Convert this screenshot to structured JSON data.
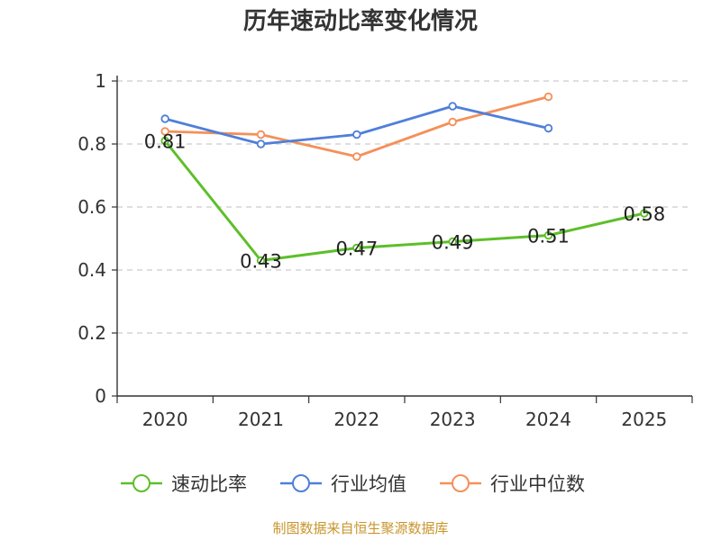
{
  "chart_data": {
    "type": "line",
    "title": "历年速动比率变化情况",
    "categories": [
      "2020",
      "2021",
      "2022",
      "2023",
      "2024",
      "2025"
    ],
    "y_ticks": [
      "0",
      "0.2",
      "0.4",
      "0.6",
      "0.8",
      "1"
    ],
    "ylim": [
      0,
      1
    ],
    "xlabel": "",
    "ylabel": "",
    "grid": "horizontal dashed",
    "legend_position": "bottom",
    "series": [
      {
        "name": "速动比率",
        "color": "#5dbf2a",
        "values": [
          0.81,
          0.43,
          0.47,
          0.49,
          0.51,
          0.58
        ],
        "labels": [
          "0.81",
          "0.43",
          "0.47",
          "0.49",
          "0.51",
          "0.58"
        ],
        "show_labels": true
      },
      {
        "name": "行业均值",
        "color": "#4f7fd9",
        "values": [
          0.88,
          0.8,
          0.83,
          0.92,
          0.85,
          null
        ],
        "show_labels": false
      },
      {
        "name": "行业中位数",
        "color": "#f5905a",
        "values": [
          0.84,
          0.83,
          0.76,
          0.87,
          0.95,
          null
        ],
        "show_labels": false
      }
    ]
  },
  "source_note": "制图数据来自恒生聚源数据库"
}
